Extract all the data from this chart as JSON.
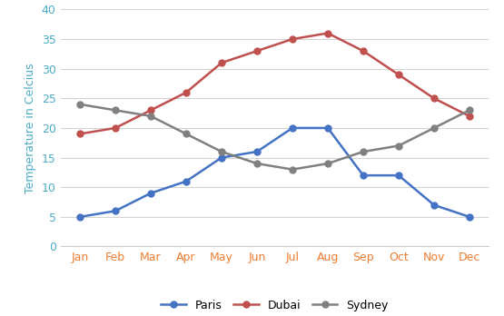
{
  "months": [
    "Jan",
    "Feb",
    "Mar",
    "Apr",
    "May",
    "Jun",
    "Jul",
    "Aug",
    "Sep",
    "Oct",
    "Nov",
    "Dec"
  ],
  "paris": [
    5,
    6,
    9,
    11,
    15,
    16,
    20,
    20,
    12,
    12,
    7,
    5
  ],
  "dubai": [
    19,
    20,
    23,
    26,
    31,
    33,
    35,
    36,
    33,
    29,
    25,
    22
  ],
  "sydney": [
    24,
    23,
    22,
    19,
    16,
    14,
    13,
    14,
    16,
    17,
    20,
    23
  ],
  "paris_color": "#4472C4",
  "dubai_color": "#C0504D",
  "sydney_color": "#808080",
  "xticklabel_color": "#ED7D31",
  "yticklabel_color": "#4BACC6",
  "ylabel_color": "#4BACC6",
  "ylabel": "Temperature in Celcius",
  "ylim": [
    0,
    40
  ],
  "yticks": [
    0,
    5,
    10,
    15,
    20,
    25,
    30,
    35,
    40
  ],
  "grid_color": "#D3D3D3",
  "bg_color": "#FFFFFF",
  "legend_labels": [
    "Paris",
    "Dubai",
    "Sydney"
  ],
  "marker": "o",
  "linewidth": 1.8,
  "markersize": 5
}
